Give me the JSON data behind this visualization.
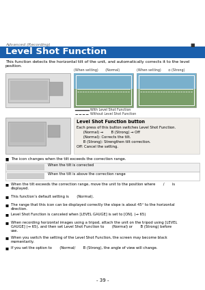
{
  "bg_color": "#ffffff",
  "header_label": "Advanced (Recording)",
  "title": "Level Shot Function",
  "title_bg": "#1a5fac",
  "title_color": "#ffffff",
  "body_text": "This function detects the horizontal tilt of the unit, and automatically corrects it to the level\nposition.",
  "caption_normal": "(When setting)       (Normal)",
  "caption_strong": "(When setting)       ▫ (Strong)",
  "legend_solid": "With Level Shot Function",
  "legend_dash": "Without Level Shot Function",
  "box_title": "Level Shot Function button",
  "box_text1": "Each press of this button switches Level Shot Function.",
  "box_text2": "      (Normal) →       B (Strong) → Off",
  "box_text3": "      (Normal): Corrects the tilt.",
  "box_text4": "      B (Strong): Strengthen tilt correction.",
  "box_text5": "Off: Cancel the setting.",
  "bullet0": "The icon changes when the tilt exceeds the correction range.",
  "table_row1": "When the tilt is corrected",
  "table_row2": "When the tilt is above the correction range",
  "bullet1": "When the tilt exceeds the correction range, move the unit to the position where       /       is\ndisplayed.",
  "bullet2": "This function’s default setting is       (Normal).",
  "bullet3": "The range that this icon can be displayed correctly the slope is about 45° to the horizontal\ndirection.",
  "bullet4": "Level Shot Function is canceled when [LEVEL GAUGE] is set to [ON]. (→ 65)",
  "bullet5": "When recording horizontal images using a tripod, attach the unit on the tripod using [LEVEL\nGAUGE] (→ 65), and then set Level Shot Function to       (Normal) or       B (Strong) before\nuse.",
  "bullet6": "When you switch the setting of the Level Shot Function, the screen may become black\nmomentarily.",
  "bullet7": "If you set the option to       (Normal/       B (Strong), the angle of view will change.",
  "page_number": "- 39 -",
  "gray_color": "#666666",
  "blue_color": "#1a5fac",
  "box_bg": "#f0ede8",
  "table_border": "#aaaaaa",
  "green_color": "#7a9e6a",
  "sky_color": "#7ab0cc"
}
